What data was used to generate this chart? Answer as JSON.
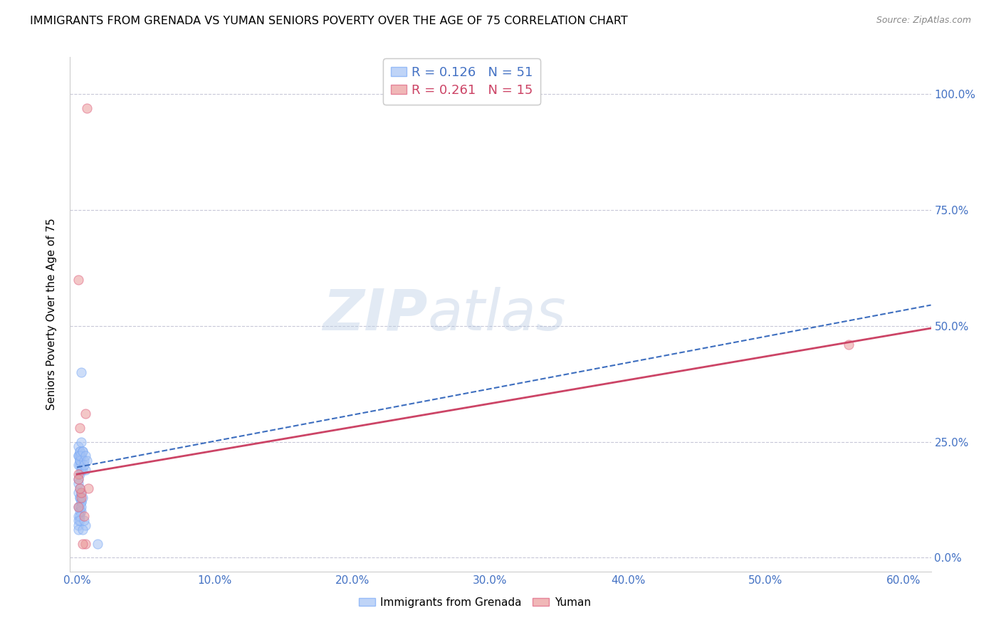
{
  "title": "IMMIGRANTS FROM GRENADA VS YUMAN SENIORS POVERTY OVER THE AGE OF 75 CORRELATION CHART",
  "source": "Source: ZipAtlas.com",
  "xlabel_ticks": [
    "0.0%",
    "10.0%",
    "20.0%",
    "30.0%",
    "40.0%",
    "50.0%",
    "60.0%"
  ],
  "ylabel_ticks": [
    "0.0%",
    "25.0%",
    "50.0%",
    "75.0%",
    "100.0%"
  ],
  "xlabel_vals": [
    0.0,
    0.1,
    0.2,
    0.3,
    0.4,
    0.5,
    0.6
  ],
  "ylabel_vals": [
    0.0,
    0.25,
    0.5,
    0.75,
    1.0
  ],
  "xlim": [
    -0.005,
    0.62
  ],
  "ylim": [
    -0.03,
    1.08
  ],
  "ylabel": "Seniors Poverty Over the Age of 75",
  "legend_entry1_r": "R = 0.126",
  "legend_entry1_n": "N = 51",
  "legend_entry2_r": "R = 0.261",
  "legend_entry2_n": "N = 15",
  "legend_label1": "Immigrants from Grenada",
  "legend_label2": "Yuman",
  "blue_color": "#a4c2f4",
  "pink_color": "#ea9999",
  "blue_line_color": "#3d6ebf",
  "pink_line_color": "#cc4466",
  "blue_dot_edge": "#7baaf7",
  "pink_dot_edge": "#e06080",
  "watermark_zip": "ZIP",
  "watermark_atlas": "atlas",
  "grid_color": "#c8c8d8",
  "title_fontsize": 11.5,
  "axis_color": "#4472c4",
  "blue_scatter_x": [
    0.001,
    0.002,
    0.001,
    0.002,
    0.003,
    0.001,
    0.002,
    0.003,
    0.004,
    0.001,
    0.002,
    0.003,
    0.002,
    0.003,
    0.001,
    0.002,
    0.003,
    0.001,
    0.002,
    0.004,
    0.001,
    0.002,
    0.002,
    0.002,
    0.003,
    0.001,
    0.002,
    0.003,
    0.003,
    0.001,
    0.002,
    0.003,
    0.001,
    0.002,
    0.001,
    0.002,
    0.003,
    0.001,
    0.002,
    0.004,
    0.005,
    0.006,
    0.004,
    0.005,
    0.006,
    0.007,
    0.006,
    0.004,
    0.005,
    0.003,
    0.015
  ],
  "blue_scatter_y": [
    0.22,
    0.23,
    0.2,
    0.21,
    0.2,
    0.24,
    0.21,
    0.22,
    0.19,
    0.22,
    0.18,
    0.25,
    0.2,
    0.22,
    0.17,
    0.23,
    0.19,
    0.16,
    0.21,
    0.23,
    0.14,
    0.22,
    0.13,
    0.15,
    0.12,
    0.11,
    0.13,
    0.1,
    0.14,
    0.09,
    0.11,
    0.12,
    0.08,
    0.1,
    0.07,
    0.09,
    0.11,
    0.06,
    0.08,
    0.13,
    0.21,
    0.19,
    0.23,
    0.2,
    0.22,
    0.21,
    0.07,
    0.06,
    0.08,
    0.4,
    0.03
  ],
  "pink_scatter_x": [
    0.001,
    0.002,
    0.001,
    0.003,
    0.005,
    0.003,
    0.006,
    0.004,
    0.008,
    0.006,
    0.007,
    0.001,
    0.002,
    0.56,
    0.001
  ],
  "pink_scatter_y": [
    0.6,
    0.28,
    0.11,
    0.13,
    0.09,
    0.14,
    0.03,
    0.03,
    0.15,
    0.31,
    0.97,
    0.18,
    0.15,
    0.46,
    0.17
  ],
  "blue_trendline_x0": 0.0,
  "blue_trendline_x1": 0.62,
  "blue_trendline_y0": 0.195,
  "blue_trendline_y1": 0.545,
  "pink_trendline_x0": 0.0,
  "pink_trendline_x1": 0.62,
  "pink_trendline_y0": 0.18,
  "pink_trendline_y1": 0.495
}
